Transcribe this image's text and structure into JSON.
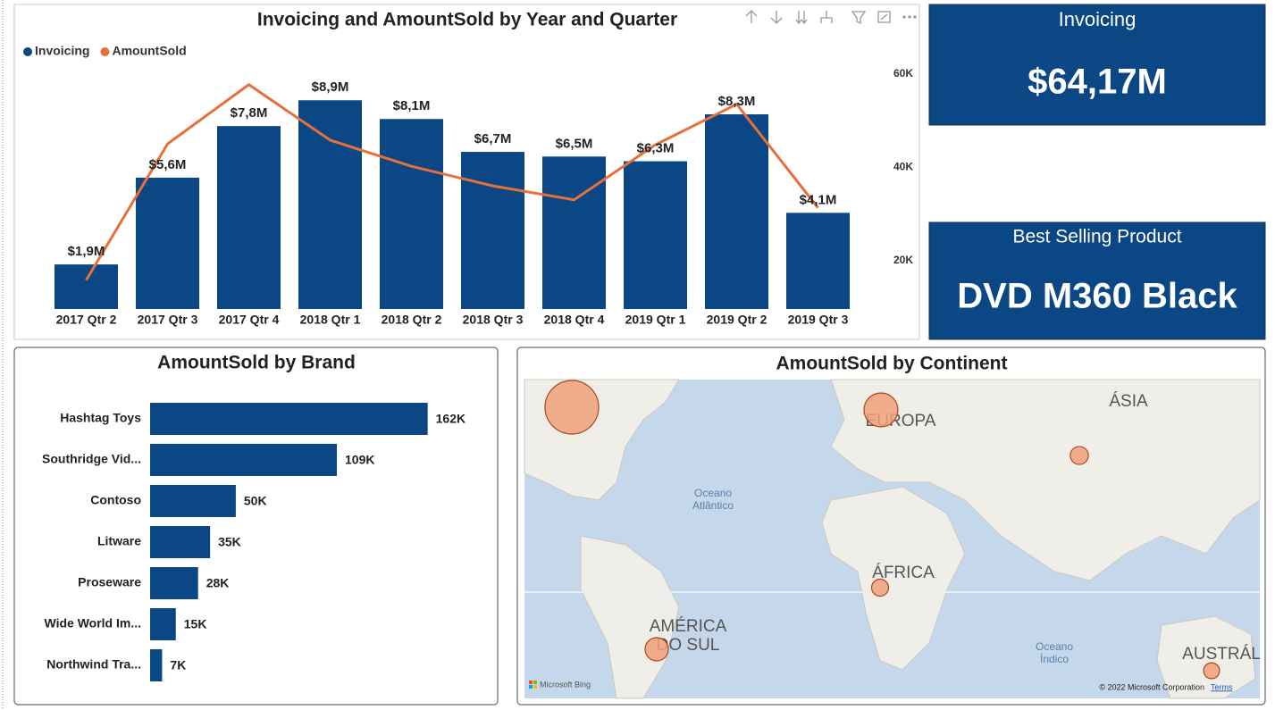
{
  "chart_data": [
    {
      "type": "combo",
      "title": "Invoicing and AmountSold by Year and Quarter",
      "categories": [
        "2017 Qtr 2",
        "2017 Qtr 3",
        "2017 Qtr 4",
        "2018 Qtr 1",
        "2018 Qtr 2",
        "2018 Qtr 3",
        "2018 Qtr 4",
        "2019 Qtr 1",
        "2019 Qtr 2",
        "2019 Qtr 3"
      ],
      "series": [
        {
          "name": "Invoicing",
          "type": "bar",
          "color": "#0b4784",
          "values": [
            1900000,
            5600000,
            7800000,
            8900000,
            8100000,
            6700000,
            6500000,
            6300000,
            8300000,
            4100000
          ],
          "value_labels": [
            "$1,9M",
            "$5,6M",
            "$7,8M",
            "$8,9M",
            "$8,1M",
            "$6,7M",
            "$6,5M",
            "$6,3M",
            "$8,3M",
            "$4,1M"
          ]
        },
        {
          "name": "AmountSold",
          "type": "line",
          "axis": "y2",
          "color": "#e6703c",
          "values": [
            15800,
            45000,
            57700,
            45800,
            40200,
            36000,
            33000,
            44800,
            53500,
            31300
          ]
        }
      ],
      "ylim": [
        0,
        10700000
      ],
      "y2lim": [
        9600,
        63400
      ],
      "y2ticks": [
        {
          "value": 20000,
          "label": "20K"
        },
        {
          "value": 40000,
          "label": "40K"
        },
        {
          "value": 60000,
          "label": "60K"
        }
      ],
      "legend": "top-left"
    },
    {
      "type": "hbar",
      "title": "AmountSold by Brand",
      "categories": [
        "Hashtag Toys",
        "Southridge Vid...",
        "Contoso",
        "Litware",
        "Proseware",
        "Wide World Im...",
        "Northwind Tra..."
      ],
      "values": [
        162000,
        109000,
        50000,
        35000,
        28000,
        15000,
        7000
      ],
      "value_labels": [
        "162K",
        "109K",
        "50K",
        "35K",
        "28K",
        "15K",
        "7K"
      ],
      "color": "#0b4784",
      "xlim": [
        0,
        194000
      ]
    },
    {
      "type": "map",
      "title": "AmountSold by Continent",
      "categories": [
        null,
        "EUROPA",
        "ÁSIA",
        "ÁFRICA",
        "AMÉRICA DO SUL",
        "AUSTRÁL"
      ],
      "values": [
        160000,
        64000,
        18000,
        16000,
        30000,
        14000
      ],
      "color": "#f0a07a",
      "labels": [
        "Oceano Atlântico",
        "Oceano Índico"
      ],
      "attribution": [
        "Microsoft Bing",
        "© 2022 Microsoft Corporation",
        "Terms"
      ]
    }
  ],
  "cards": [
    {
      "title": "Invoicing",
      "value": "$64,17M"
    },
    {
      "title": "Best Selling Product",
      "value": "DVD M360 Black"
    }
  ]
}
